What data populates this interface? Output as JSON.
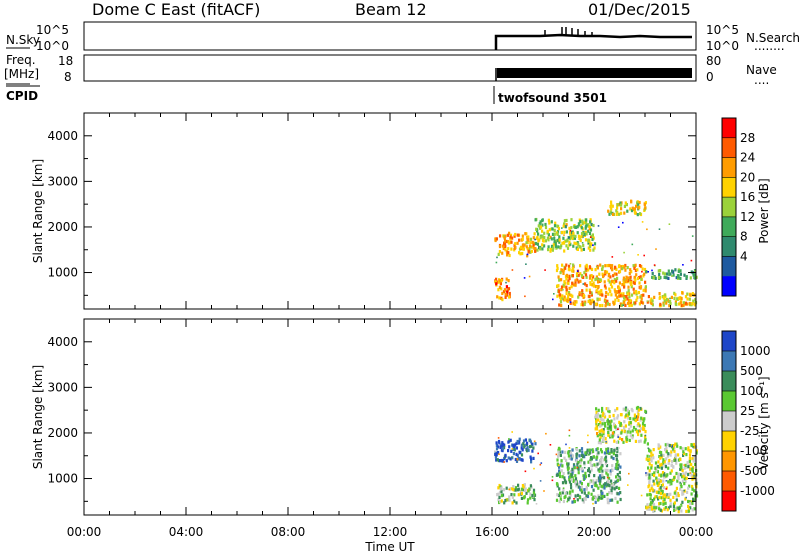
{
  "header": {
    "station": "Dome C East (fitACF)",
    "beam": "Beam 12",
    "date": "01/Dec/2015"
  },
  "panels": {
    "nsky": {
      "left_label": "N.Sky",
      "left_ticks": [
        "10^5",
        "10^0"
      ],
      "right_ticks": [
        "10^5",
        "10^0"
      ],
      "right_label": "N.Search",
      "right_dots": "........"
    },
    "freq": {
      "left_label_1": "Freq.",
      "left_label_2": "[MHz]",
      "left_ticks": [
        "18",
        "8"
      ],
      "right_ticks": [
        "80",
        "0"
      ],
      "right_label": "Nave",
      "right_dots": "...."
    },
    "cpid": {
      "label": "CPID",
      "mode": "twofsound 3501"
    }
  },
  "axes": {
    "xlabel": "Time UT",
    "xticks": [
      "00:00",
      "04:00",
      "08:00",
      "12:00",
      "16:00",
      "20:00",
      "00:00"
    ],
    "ylabel": "Slant Range [km]",
    "yticks": [
      "1000",
      "2000",
      "3000",
      "4000"
    ]
  },
  "colorbars": {
    "power": {
      "label": "Power [dB]",
      "ticks": [
        "28",
        "24",
        "20",
        "16",
        "12",
        "8",
        "4"
      ],
      "colors": [
        "#ff0000",
        "#ff5a00",
        "#ff9c00",
        "#ffd200",
        "#9bd23a",
        "#3faa5a",
        "#2f8a6e",
        "#1e5aa0",
        "#0000ff"
      ]
    },
    "velocity": {
      "label": "Velocity [m s⁻¹]",
      "ticks": [
        "1000",
        "500",
        "100",
        "25",
        "-25",
        "-100",
        "-500",
        "-1000"
      ],
      "colors": [
        "#1e46c8",
        "#3c78b4",
        "#3a8c5a",
        "#5ac832",
        "#cccccc",
        "#ffd200",
        "#ff9600",
        "#ff5a00",
        "#ff0000"
      ]
    }
  },
  "chart_data": [
    {
      "type": "heatmap",
      "title": "Power",
      "xlabel": "Time UT",
      "ylabel": "Slant Range [km]",
      "xlim": [
        "00:00",
        "24:00"
      ],
      "ylim": [
        200,
        4500
      ],
      "colorbar_label": "Power [dB]",
      "colorbar_range": [
        0,
        32
      ],
      "data_start": "16:00",
      "regions": [
        {
          "t_start": "16:05",
          "t_end": "17:40",
          "range_start": 1400,
          "range_end": 1900,
          "value": 22
        },
        {
          "t_start": "16:05",
          "t_end": "16:40",
          "range_start": 400,
          "range_end": 900,
          "value": 24
        },
        {
          "t_start": "17:40",
          "t_end": "20:00",
          "range_start": 1500,
          "range_end": 2200,
          "value": 16
        },
        {
          "t_start": "18:30",
          "t_end": "22:00",
          "range_start": 300,
          "range_end": 1200,
          "value": 22
        },
        {
          "t_start": "20:30",
          "t_end": "22:00",
          "range_start": 2300,
          "range_end": 2600,
          "value": 18
        },
        {
          "t_start": "22:00",
          "t_end": "24:00",
          "range_start": 300,
          "range_end": 600,
          "value": 20
        },
        {
          "t_start": "22:00",
          "t_end": "24:00",
          "range_start": 900,
          "range_end": 1100,
          "value": 12
        }
      ]
    },
    {
      "type": "heatmap",
      "title": "Velocity",
      "xlabel": "Time UT",
      "ylabel": "Slant Range [km]",
      "xlim": [
        "00:00",
        "24:00"
      ],
      "ylim": [
        200,
        4500
      ],
      "colorbar_label": "Velocity [m s-1]",
      "colorbar_range": [
        -1000,
        1000
      ],
      "data_start": "16:00",
      "regions": [
        {
          "t_start": "16:05",
          "t_end": "17:40",
          "range_start": 1400,
          "range_end": 1900,
          "value": 800
        },
        {
          "t_start": "16:05",
          "t_end": "17:40",
          "range_start": 500,
          "range_end": 900,
          "value": 150
        },
        {
          "t_start": "18:30",
          "t_end": "21:00",
          "range_start": 500,
          "range_end": 1700,
          "value": 300
        },
        {
          "t_start": "20:00",
          "t_end": "22:00",
          "range_start": 1800,
          "range_end": 2600,
          "value": 0
        },
        {
          "t_start": "22:00",
          "t_end": "24:00",
          "range_start": 300,
          "range_end": 1800,
          "value": 60
        }
      ]
    }
  ]
}
